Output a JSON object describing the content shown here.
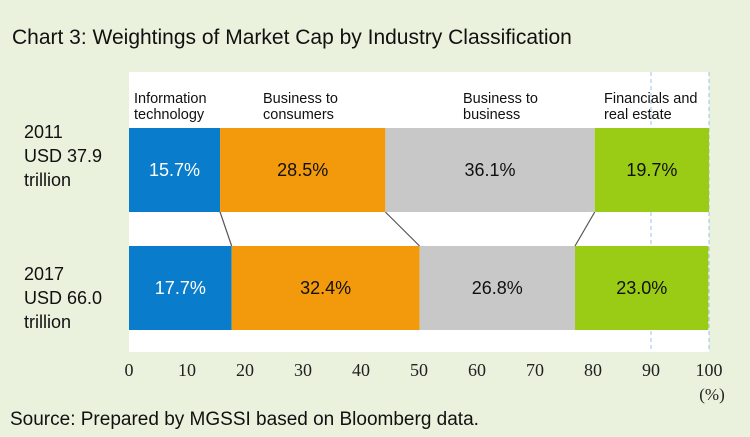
{
  "colors": {
    "background": "#eaf1dd",
    "plot_background": "#ffffff",
    "information_technology": "#0a7ccc",
    "business_to_consumers": "#f29a0c",
    "business_to_business": "#c8c8c8",
    "financials_and_real_estate": "#9acb15",
    "grid": "#9dc3e6",
    "connector": "#555555"
  },
  "chart_data": {
    "type": "bar",
    "orientation": "horizontal",
    "stacked": true,
    "title": "Chart 3: Weightings of Market Cap by Industry Classification",
    "categories": [
      [
        "2011",
        "USD 37.9",
        "trillion"
      ],
      [
        "2017",
        "USD 66.0",
        "trillion"
      ]
    ],
    "series": [
      {
        "name_lines": [
          "Information",
          "technology"
        ],
        "values": [
          15.7,
          17.7
        ],
        "value_labels": [
          "15.7%",
          "17.7%"
        ],
        "color": "#0a7ccc",
        "label_color": "#ffffff"
      },
      {
        "name_lines": [
          "Business to",
          "consumers"
        ],
        "values": [
          28.5,
          32.4
        ],
        "value_labels": [
          "28.5%",
          "32.4%"
        ],
        "color": "#f29a0c",
        "label_color": "#111111"
      },
      {
        "name_lines": [
          "Business to",
          "business"
        ],
        "values": [
          36.1,
          26.8
        ],
        "value_labels": [
          "36.1%",
          "26.8%"
        ],
        "color": "#c8c8c8",
        "label_color": "#111111"
      },
      {
        "name_lines": [
          "Financials and",
          "real estate"
        ],
        "values": [
          19.7,
          23.0
        ],
        "value_labels": [
          "19.7%",
          "23.0%"
        ],
        "color": "#9acb15",
        "label_color": "#111111"
      }
    ],
    "xlim": [
      0,
      100
    ],
    "xticks": [
      0,
      10,
      20,
      30,
      40,
      50,
      60,
      70,
      80,
      90,
      100
    ],
    "x_unit": "(%)",
    "grid": "vertical dashed at 90 and 100",
    "legend": "category names printed inside plot above the top bar",
    "series_connectors": true
  },
  "footer": {
    "source": "Source: Prepared by MGSSI based on Bloomberg data."
  }
}
